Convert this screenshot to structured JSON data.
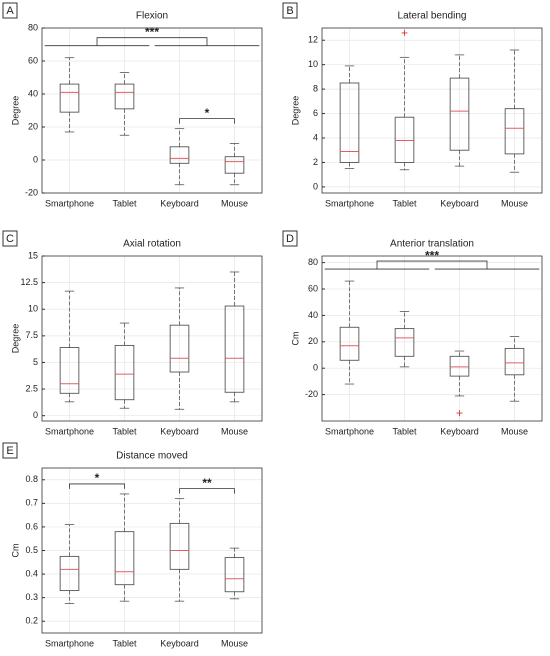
{
  "chart_data": [
    {
      "type": "box",
      "panel": "A",
      "title": "Flexion",
      "y_label": "Degree",
      "categories": [
        "Smartphone",
        "Tablet",
        "Keyboard",
        "Mouse"
      ],
      "ylim": [
        -20,
        80
      ],
      "yticks": [
        -20,
        0,
        20,
        40,
        60,
        80
      ],
      "grid": true,
      "box_color": "#555555",
      "median_color": "#e06060",
      "outlier_color": "#e03030",
      "boxes": [
        {
          "low": 17,
          "q1": 29,
          "median": 41,
          "q3": 46,
          "high": 62,
          "outliers": []
        },
        {
          "low": 15,
          "q1": 31,
          "median": 41,
          "q3": 46,
          "high": 53,
          "outliers": []
        },
        {
          "low": -15,
          "q1": -2,
          "median": 1,
          "q3": 8,
          "high": 19,
          "outliers": []
        },
        {
          "low": -15,
          "q1": -8,
          "median": -1,
          "q3": 2,
          "high": 10,
          "outliers": []
        }
      ],
      "annotations": [
        {
          "label": "***",
          "left": [
            0,
            1
          ],
          "right": [
            2,
            3
          ]
        },
        {
          "label": "*",
          "left": [
            2
          ],
          "right": [
            3
          ]
        }
      ]
    },
    {
      "type": "box",
      "panel": "B",
      "title": "Lateral bending",
      "y_label": "Degree",
      "categories": [
        "Smartphone",
        "Tablet",
        "Keyboard",
        "Mouse"
      ],
      "ylim": [
        -0.5,
        13
      ],
      "yticks": [
        0,
        2,
        4,
        6,
        8,
        10,
        12
      ],
      "grid": true,
      "box_color": "#555555",
      "median_color": "#e06060",
      "outlier_color": "#e03030",
      "boxes": [
        {
          "low": 1.5,
          "q1": 2,
          "median": 2.9,
          "q3": 8.5,
          "high": 9.9,
          "outliers": []
        },
        {
          "low": 1.4,
          "q1": 2,
          "median": 3.8,
          "q3": 5.7,
          "high": 10.6,
          "outliers": [
            12.6
          ]
        },
        {
          "low": 1.7,
          "q1": 3,
          "median": 6.2,
          "q3": 8.9,
          "high": 10.8,
          "outliers": []
        },
        {
          "low": 1.2,
          "q1": 2.7,
          "median": 4.8,
          "q3": 6.4,
          "high": 11.2,
          "outliers": []
        }
      ],
      "annotations": []
    },
    {
      "type": "box",
      "panel": "C",
      "title": "Axial rotation",
      "y_label": "Degree",
      "categories": [
        "Smartphone",
        "Tablet",
        "Keyboard",
        "Mouse"
      ],
      "ylim": [
        -0.5,
        15
      ],
      "yticks": [
        0,
        2.5,
        5,
        7.5,
        10,
        12.5,
        15
      ],
      "grid": true,
      "box_color": "#555555",
      "median_color": "#e06060",
      "outlier_color": "#e03030",
      "boxes": [
        {
          "low": 1.3,
          "q1": 2.1,
          "median": 3,
          "q3": 6.4,
          "high": 11.7,
          "outliers": []
        },
        {
          "low": 0.7,
          "q1": 1.5,
          "median": 3.9,
          "q3": 6.6,
          "high": 8.7,
          "outliers": []
        },
        {
          "low": 0.6,
          "q1": 4.1,
          "median": 5.4,
          "q3": 8.5,
          "high": 12,
          "outliers": []
        },
        {
          "low": 1.3,
          "q1": 2.2,
          "median": 5.4,
          "q3": 10.3,
          "high": 13.5,
          "outliers": []
        }
      ],
      "annotations": []
    },
    {
      "type": "box",
      "panel": "D",
      "title": "Anterior translation",
      "y_label": "Cm",
      "categories": [
        "Smartphone",
        "Tablet",
        "Keyboard",
        "Mouse"
      ],
      "ylim": [
        -40,
        85
      ],
      "yticks": [
        -20,
        0,
        20,
        40,
        60,
        80
      ],
      "grid": true,
      "box_color": "#555555",
      "median_color": "#e06060",
      "outlier_color": "#e03030",
      "boxes": [
        {
          "low": -12,
          "q1": 6,
          "median": 17,
          "q3": 31,
          "high": 66,
          "outliers": []
        },
        {
          "low": 1,
          "q1": 9,
          "median": 23,
          "q3": 30,
          "high": 43,
          "outliers": []
        },
        {
          "low": -21,
          "q1": -6,
          "median": 1,
          "q3": 9,
          "high": 13,
          "outliers": [
            -34
          ]
        },
        {
          "low": -25,
          "q1": -5,
          "median": 4,
          "q3": 15,
          "high": 24,
          "outliers": []
        }
      ],
      "annotations": [
        {
          "label": "***",
          "left": [
            0,
            1
          ],
          "right": [
            2,
            3
          ]
        }
      ]
    },
    {
      "type": "box",
      "panel": "E",
      "title": "Distance moved",
      "y_label": "Cm",
      "categories": [
        "Smartphone",
        "Tablet",
        "Keyboard",
        "Mouse"
      ],
      "ylim": [
        0.15,
        0.85
      ],
      "yticks": [
        0.2,
        0.3,
        0.4,
        0.5,
        0.6,
        0.7,
        0.8
      ],
      "grid": true,
      "box_color": "#555555",
      "median_color": "#e06060",
      "outlier_color": "#e03030",
      "boxes": [
        {
          "low": 0.275,
          "q1": 0.33,
          "median": 0.42,
          "q3": 0.475,
          "high": 0.61,
          "outliers": []
        },
        {
          "low": 0.285,
          "q1": 0.355,
          "median": 0.41,
          "q3": 0.58,
          "high": 0.74,
          "outliers": []
        },
        {
          "low": 0.285,
          "q1": 0.42,
          "median": 0.5,
          "q3": 0.615,
          "high": 0.72,
          "outliers": []
        },
        {
          "low": 0.295,
          "q1": 0.325,
          "median": 0.38,
          "q3": 0.47,
          "high": 0.51,
          "outliers": []
        }
      ],
      "annotations": [
        {
          "label": "*",
          "left": [
            0
          ],
          "right": [
            1
          ]
        },
        {
          "label": "**",
          "left": [
            2
          ],
          "right": [
            3
          ]
        }
      ]
    }
  ]
}
